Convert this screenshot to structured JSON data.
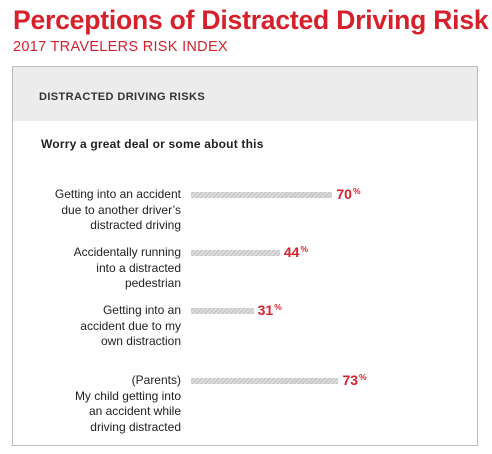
{
  "header": {
    "title": "Perceptions of Distracted Driving Risk",
    "subtitle": "2017 TRAVELERS RISK INDEX"
  },
  "panel": {
    "title": "DISTRACTED DRIVING RISKS",
    "question": "Worry a great deal or some about this"
  },
  "chart_data": {
    "type": "bar",
    "orientation": "horizontal",
    "categories": [
      "Getting into an accident due to another driver’s distracted driving",
      "Accidentally running into a distracted pedestrian",
      "Getting into an accident due to my own distraction",
      "(Parents) My child getting into an accident while driving distracted"
    ],
    "category_lines": [
      [
        "Getting into an accident",
        "due to another driver’s",
        "distracted driving"
      ],
      [
        "Accidentally running",
        "into a distracted",
        "pedestrian"
      ],
      [
        "Getting into an",
        "accident due to my",
        "own distraction"
      ],
      [
        "(Parents)",
        "My child getting into",
        "an accident while",
        "driving distracted"
      ]
    ],
    "values": [
      70,
      44,
      31,
      73
    ],
    "value_labels": [
      "70",
      "44",
      "31",
      "73"
    ],
    "value_suffix": "%",
    "xlim": [
      0,
      100
    ],
    "grid": false,
    "legend": "none",
    "colors": {
      "bar": "#c9c9c9",
      "value_text": "#d6202c",
      "title_text": "#d6202c"
    }
  }
}
